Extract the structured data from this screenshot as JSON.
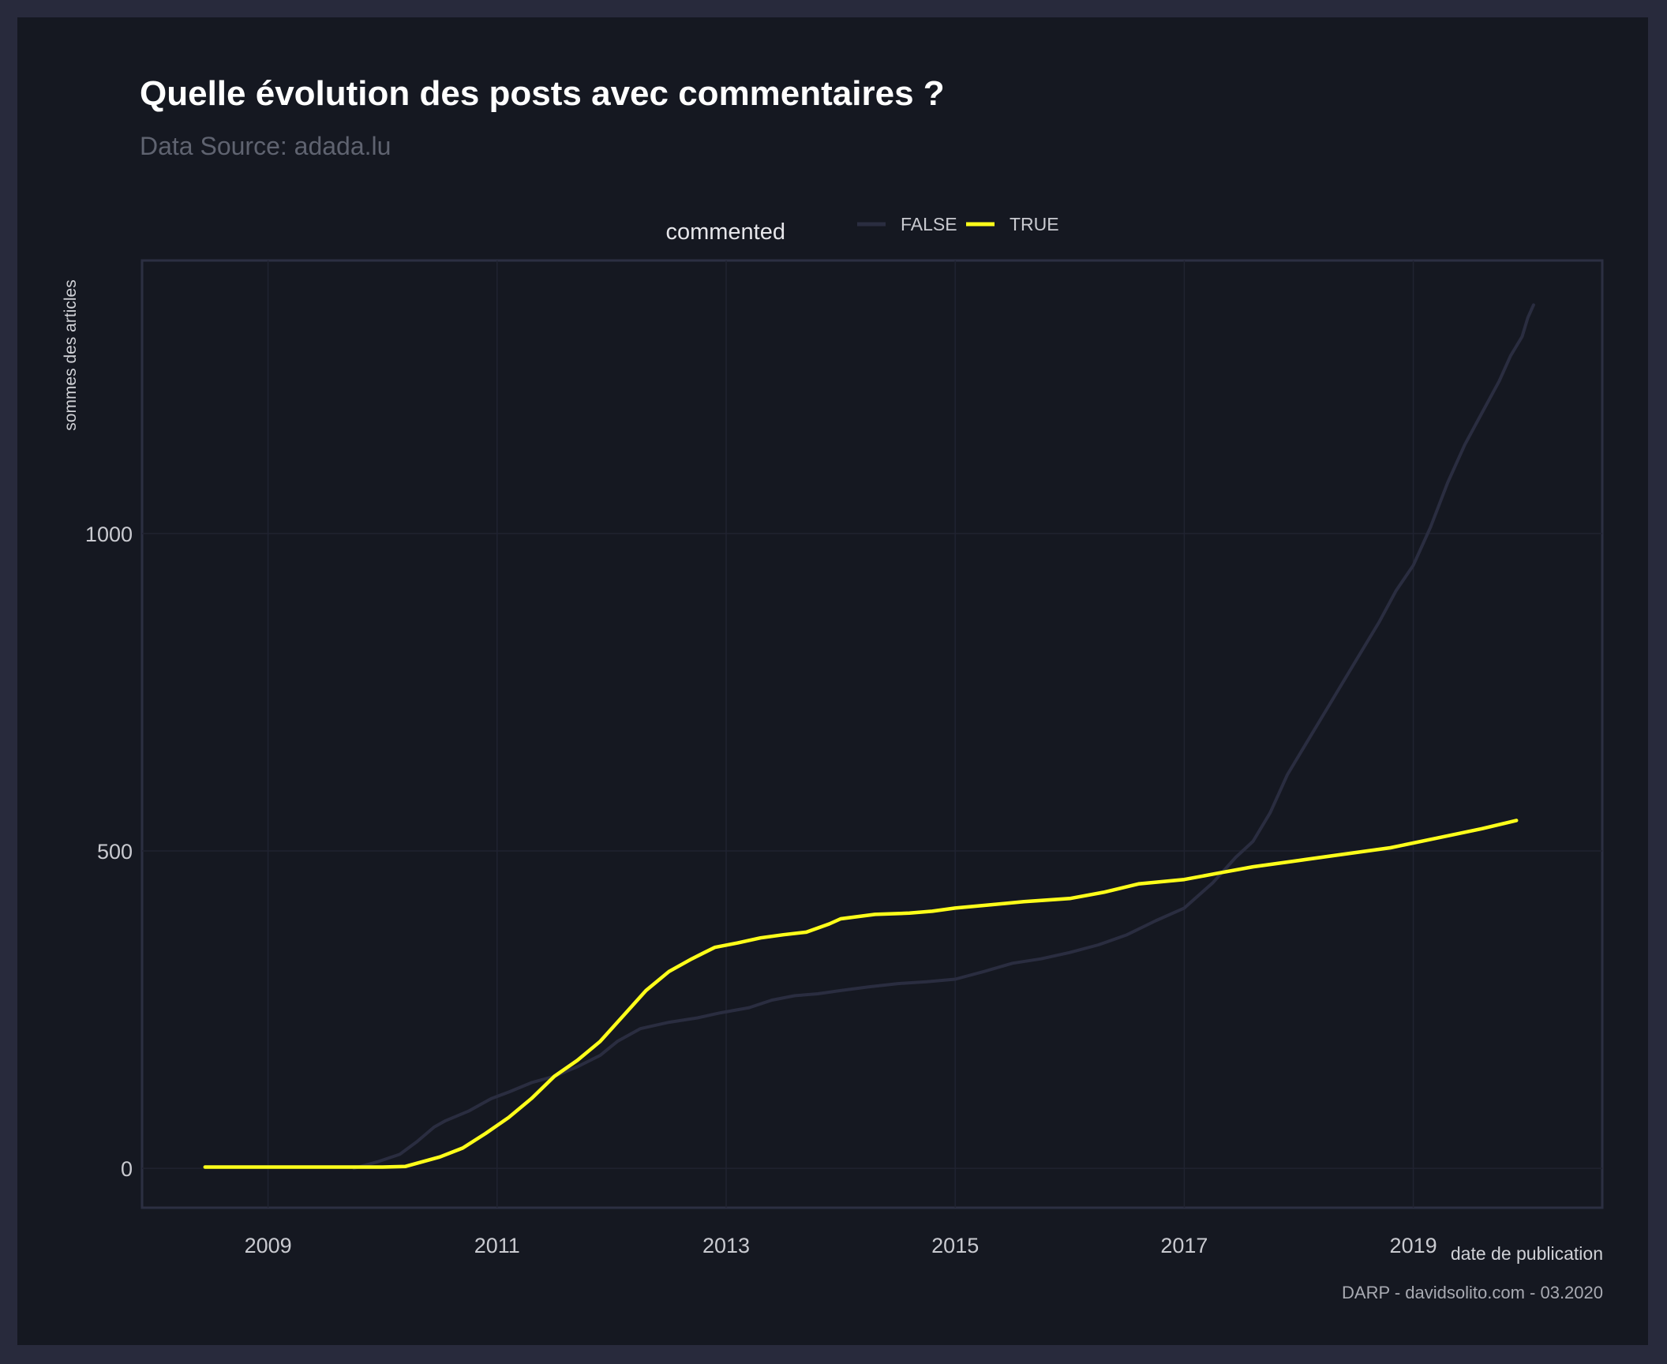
{
  "chart_data": {
    "type": "line",
    "title": "Quelle évolution des posts avec commentaires ?",
    "subtitle": "Data Source: adada.lu",
    "caption": "DARP - davidsolito.com - 03.2020",
    "xlabel": "date de publication",
    "ylabel": "sommes des articles",
    "legend": {
      "title": "commented",
      "position": "top"
    },
    "xlim": [
      2007.9,
      2020.65
    ],
    "ylim": [
      -62,
      1430
    ],
    "x_ticks": [
      2009,
      2011,
      2013,
      2015,
      2017,
      2019
    ],
    "y_ticks": [
      0,
      500,
      1000
    ],
    "grid": true,
    "series": [
      {
        "name": "FALSE",
        "color": "#2a2d40",
        "x": [
          2009.75,
          2009.95,
          2010.15,
          2010.3,
          2010.45,
          2010.55,
          2010.75,
          2010.95,
          2011.1,
          2011.3,
          2011.5,
          2011.7,
          2011.9,
          2012.05,
          2012.25,
          2012.5,
          2012.75,
          2012.95,
          2013.2,
          2013.4,
          2013.6,
          2013.8,
          2014.0,
          2014.25,
          2014.5,
          2014.75,
          2015.0,
          2015.25,
          2015.5,
          2015.75,
          2016.0,
          2016.25,
          2016.5,
          2016.75,
          2017.0,
          2017.25,
          2017.45,
          2017.6,
          2017.75,
          2017.9,
          2018.1,
          2018.3,
          2018.5,
          2018.7,
          2018.85,
          2019.0,
          2019.15,
          2019.3,
          2019.45,
          2019.6,
          2019.75,
          2019.85,
          2019.95,
          2020.0,
          2020.05
        ],
        "values": [
          0,
          10,
          22,
          42,
          65,
          75,
          90,
          110,
          120,
          135,
          145,
          160,
          178,
          200,
          220,
          230,
          237,
          245,
          253,
          265,
          272,
          275,
          280,
          286,
          291,
          294,
          298,
          310,
          323,
          330,
          340,
          352,
          368,
          390,
          410,
          450,
          490,
          515,
          560,
          620,
          680,
          740,
          800,
          860,
          910,
          950,
          1010,
          1080,
          1140,
          1190,
          1240,
          1280,
          1310,
          1340,
          1360
        ]
      },
      {
        "name": "TRUE",
        "color": "#ffff1a",
        "x": [
          2008.45,
          2009.0,
          2009.5,
          2010.0,
          2010.2,
          2010.3,
          2010.5,
          2010.7,
          2010.9,
          2011.1,
          2011.3,
          2011.5,
          2011.7,
          2011.9,
          2012.1,
          2012.3,
          2012.5,
          2012.7,
          2012.9,
          2013.1,
          2013.3,
          2013.5,
          2013.7,
          2013.9,
          2014.0,
          2014.3,
          2014.6,
          2014.8,
          2015.0,
          2015.3,
          2015.6,
          2016.0,
          2016.3,
          2016.6,
          2017.0,
          2017.3,
          2017.6,
          2018.0,
          2018.4,
          2018.8,
          2019.2,
          2019.6,
          2019.9
        ],
        "values": [
          2,
          2,
          2,
          2,
          3,
          8,
          18,
          32,
          55,
          80,
          110,
          145,
          170,
          200,
          240,
          280,
          310,
          330,
          348,
          355,
          363,
          368,
          372,
          385,
          393,
          400,
          402,
          405,
          410,
          415,
          420,
          425,
          435,
          448,
          455,
          465,
          475,
          485,
          495,
          505,
          520,
          535,
          548
        ]
      }
    ]
  }
}
